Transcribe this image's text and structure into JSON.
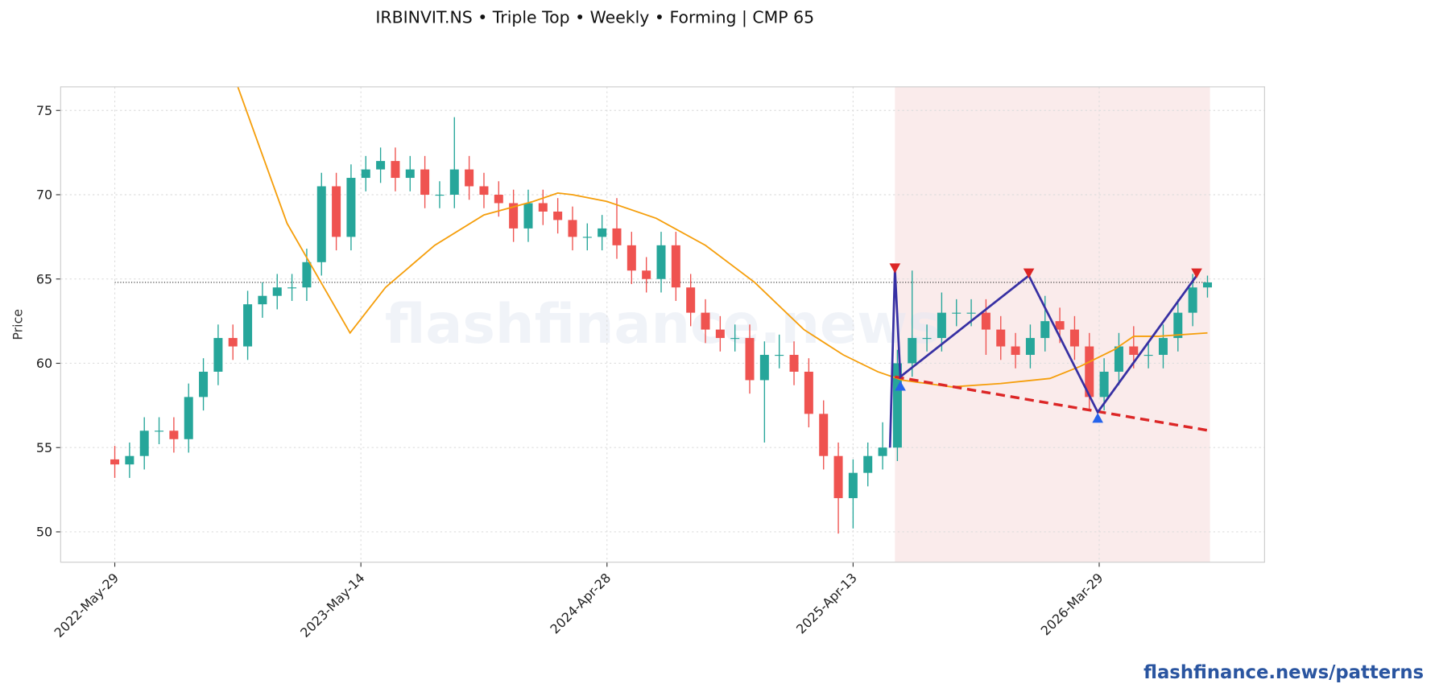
{
  "chart_data": {
    "type": "candlestick",
    "title": "IRBINVIT.NS  •  Triple Top  •  Weekly  •  Forming  |  CMP 65",
    "ylabel": "Price",
    "watermark": "flashfinance.news",
    "up_color": "#26a69a",
    "down_color": "#ef5350",
    "x": [
      0,
      3,
      6,
      9,
      12,
      15,
      18,
      21,
      24,
      27,
      30,
      33,
      36,
      39,
      42,
      45,
      48,
      51,
      54,
      57,
      60,
      63,
      66,
      69,
      72,
      75,
      78,
      81,
      84,
      87,
      90,
      93,
      96,
      99,
      102,
      105,
      108,
      111,
      114,
      117,
      120,
      123,
      126,
      129,
      132,
      135,
      138,
      141,
      144,
      147,
      150,
      153,
      156,
      159,
      162,
      165,
      168,
      171,
      174,
      177,
      180,
      183,
      186,
      189,
      192,
      195,
      198,
      201,
      204,
      207,
      210,
      213,
      216,
      219,
      222
    ],
    "open": [
      54.3,
      54,
      54.5,
      56,
      56,
      55.5,
      58,
      59.5,
      61.5,
      61,
      63.5,
      64,
      64.5,
      64.5,
      66,
      70.5,
      67.5,
      71,
      71.5,
      72,
      71,
      71.5,
      70,
      70,
      71.5,
      70.5,
      70,
      69.5,
      68,
      69.5,
      69,
      68.5,
      67.5,
      67.5,
      68,
      67,
      65.5,
      65,
      67,
      64.5,
      63,
      62,
      61.5,
      61.5,
      59,
      60.5,
      60.5,
      59.5,
      57,
      54.5,
      52,
      53.5,
      54.5,
      55,
      60,
      61.5,
      61.5,
      63,
      63,
      63,
      62,
      61,
      60.5,
      61.5,
      62.5,
      62,
      61,
      58,
      59.5,
      61,
      60.5,
      60.5,
      61.5,
      63,
      64.5
    ],
    "high": [
      55.1,
      55.3,
      56.8,
      56.8,
      56.8,
      58.8,
      60.3,
      62.3,
      62.3,
      64.3,
      64.8,
      65.3,
      65.3,
      66.8,
      71.3,
      71.3,
      71.8,
      72.3,
      72.8,
      72.8,
      72.3,
      72.3,
      70.8,
      74.6,
      72.3,
      71.3,
      70.8,
      70.3,
      70.3,
      70.3,
      69.8,
      69.3,
      68.3,
      68.8,
      69.8,
      67.8,
      66.3,
      67.8,
      67.8,
      65.3,
      63.8,
      62.8,
      62.3,
      62.3,
      61.3,
      61.7,
      61.3,
      60.3,
      57.8,
      55.3,
      54.3,
      55.3,
      56.5,
      60.8,
      65.5,
      62.3,
      64.2,
      63.8,
      63.8,
      63.8,
      62.8,
      61.8,
      62.3,
      64,
      63.3,
      62.8,
      61.8,
      60.3,
      61.8,
      62.2,
      61.3,
      62.3,
      63.8,
      65.3,
      65.2
    ],
    "low": [
      53.2,
      53.2,
      53.7,
      55.2,
      54.7,
      54.7,
      57.2,
      58.7,
      60.2,
      60.2,
      62.7,
      63.2,
      63.7,
      63.7,
      65.2,
      66.7,
      66.7,
      70.2,
      70.7,
      70.2,
      70.2,
      69.2,
      69.2,
      69.2,
      69.7,
      69.2,
      68.7,
      67.2,
      67.2,
      68.2,
      67.7,
      66.7,
      66.7,
      66.7,
      66.2,
      64.7,
      64.2,
      64.2,
      63.7,
      62.2,
      61.2,
      60.7,
      60.7,
      58.2,
      55.3,
      59.7,
      58.7,
      56.2,
      53.7,
      49.9,
      50.2,
      52.7,
      53.7,
      54.2,
      59.2,
      60.7,
      60.7,
      62.2,
      62.2,
      60.5,
      60.2,
      59.7,
      59.7,
      60.7,
      61.2,
      60.2,
      57.2,
      57.2,
      58.7,
      59.7,
      59.7,
      59.7,
      60.7,
      62.2,
      63.9
    ],
    "close": [
      54,
      54.5,
      56,
      56,
      55.5,
      58,
      59.5,
      61.5,
      61,
      63.5,
      64,
      64.5,
      64.5,
      66,
      70.5,
      67.5,
      71,
      71.5,
      72,
      71,
      71.5,
      70,
      70,
      71.5,
      70.5,
      70,
      69.5,
      68,
      69.5,
      69,
      68.5,
      67.5,
      67.5,
      68,
      67,
      65.5,
      65,
      67,
      64.5,
      63,
      62,
      61.5,
      61.5,
      59,
      60.5,
      60.5,
      59.5,
      57,
      54.5,
      52,
      53.5,
      54.5,
      55,
      60,
      61.5,
      61.5,
      63,
      63,
      63,
      62,
      61,
      60.5,
      61.5,
      62.5,
      62,
      61,
      58,
      59.5,
      61,
      60.5,
      60.5,
      61.5,
      63,
      64.5,
      64.8
    ],
    "ma": {
      "color": "#f59e0b",
      "x": [
        25,
        35,
        47.8,
        55,
        65,
        75,
        85,
        90,
        93,
        100,
        110,
        120,
        130,
        140,
        148,
        155,
        160,
        170,
        180,
        190,
        196,
        203,
        207,
        212,
        222
      ],
      "values": [
        76.4,
        68.3,
        61.8,
        64.5,
        67,
        68.8,
        69.6,
        70.1,
        70,
        69.6,
        68.6,
        67,
        64.8,
        62,
        60.5,
        59.5,
        59,
        58.6,
        58.8,
        59.1,
        59.8,
        60.8,
        61.6,
        61.6,
        61.8
      ]
    },
    "pattern": {
      "color": "#3730a3",
      "x": [
        157.5,
        158.5,
        159.6,
        185.7,
        199.7,
        219.8
      ],
      "values": [
        55,
        65.6,
        59.2,
        65.2,
        57.1,
        65.2
      ]
    },
    "peaks": {
      "color": "#dc2626",
      "x": [
        158.5,
        185.7,
        219.8
      ],
      "values": [
        65.6,
        65.3,
        65.3
      ]
    },
    "troughs": {
      "color": "#2563eb",
      "x": [
        159.6,
        199.7
      ],
      "values": [
        58.7,
        56.8
      ]
    },
    "neckline": {
      "color": "#dc2626",
      "x": [
        158.5,
        222.5
      ],
      "values": [
        59.2,
        56
      ]
    },
    "zone": {
      "color": "#f6dede",
      "x": [
        158.5,
        222.5
      ]
    },
    "cmp": 64.8,
    "xlim": [
      -11,
      233.6
    ],
    "ylim": [
      48.2,
      76.4
    ],
    "xticks": [
      {
        "value": 0,
        "label": "2022-May-29"
      },
      {
        "value": 50,
        "label": "2023-May-14"
      },
      {
        "value": 100,
        "label": "2024-Apr-28"
      },
      {
        "value": 150,
        "label": "2025-Apr-13"
      },
      {
        "value": 200,
        "label": "2026-Mar-29"
      }
    ],
    "yticks": [
      50,
      55,
      60,
      65,
      70,
      75
    ],
    "grid": true
  },
  "footer": "flashfinance.news/patterns"
}
